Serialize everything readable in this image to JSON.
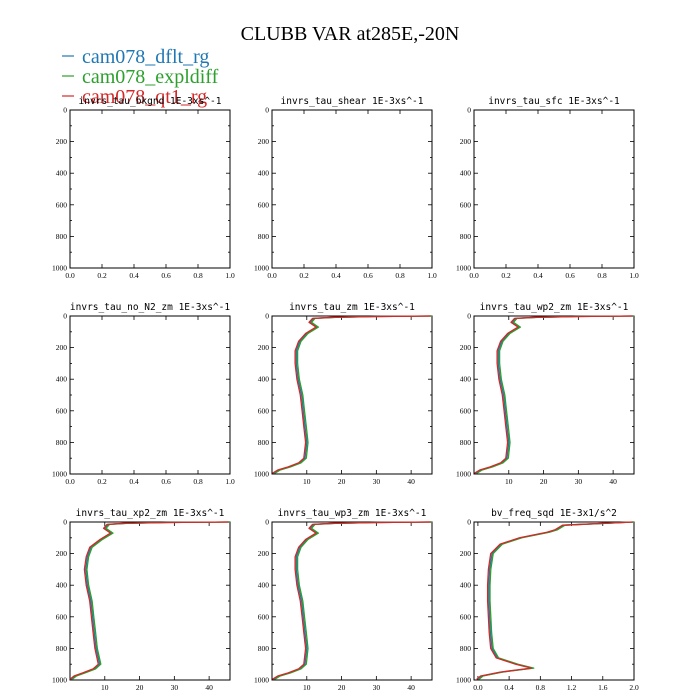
{
  "title": "CLUBB VAR at285E,-20N",
  "legend": [
    {
      "label": "cam078_dflt_rg",
      "color": "#1f77b4"
    },
    {
      "label": "cam078_expldiff",
      "color": "#2ca02c"
    },
    {
      "label": "cam078_qt1_rg",
      "color": "#d62728"
    }
  ],
  "chart_data": [
    {
      "type": "line",
      "title": "invrs_tau_bkgnd",
      "units": "1E-3xs^-1",
      "xlim": [
        0,
        1
      ],
      "xticks": [
        "0.0",
        "0.2",
        "0.4",
        "0.6",
        "0.8",
        "1.0"
      ],
      "ylim": [
        1000,
        0
      ],
      "yticks": [
        "0",
        "200",
        "400",
        "600",
        "800",
        "1000"
      ],
      "series": []
    },
    {
      "type": "line",
      "title": "invrs_tau_shear",
      "units": "1E-3xs^-1",
      "xlim": [
        0,
        1
      ],
      "xticks": [
        "0.0",
        "0.2",
        "0.4",
        "0.6",
        "0.8",
        "1.0"
      ],
      "ylim": [
        1000,
        0
      ],
      "yticks": [
        "0",
        "200",
        "400",
        "600",
        "800",
        "1000"
      ],
      "series": []
    },
    {
      "type": "line",
      "title": "invrs_tau_sfc",
      "units": "1E-3xs^-1",
      "xlim": [
        0,
        1
      ],
      "xticks": [
        "0.0",
        "0.2",
        "0.4",
        "0.6",
        "0.8",
        "1.0"
      ],
      "ylim": [
        1000,
        0
      ],
      "yticks": [
        "0",
        "200",
        "400",
        "600",
        "800",
        "1000"
      ],
      "series": []
    },
    {
      "type": "line",
      "title": "invrs_tau_no_N2_zm",
      "units": "1E-3xs^-1",
      "xlim": [
        0,
        1
      ],
      "xticks": [
        "0.0",
        "0.2",
        "0.4",
        "0.6",
        "0.8",
        "1.0"
      ],
      "ylim": [
        1000,
        0
      ],
      "yticks": [
        "0",
        "200",
        "400",
        "600",
        "800",
        "1000"
      ],
      "series": []
    },
    {
      "type": "line",
      "title": "invrs_tau_zm",
      "units": "1E-3xs^-1",
      "xlim": [
        0,
        46
      ],
      "xticks": [
        "10",
        "20",
        "30",
        "40"
      ],
      "xtickvals": [
        10,
        20,
        30,
        40
      ],
      "ylim": [
        1000,
        0
      ],
      "yticks": [
        "0",
        "200",
        "400",
        "600",
        "800",
        "1000"
      ],
      "series": [
        {
          "x": [
            46,
            30,
            18,
            12,
            11,
            13,
            10,
            8,
            7,
            7,
            7.5,
            8.5,
            9,
            9.5,
            10,
            9.5,
            8,
            5,
            2,
            0.5
          ],
          "y": [
            0,
            3,
            8,
            15,
            40,
            70,
            110,
            160,
            220,
            300,
            400,
            500,
            600,
            700,
            800,
            900,
            930,
            955,
            975,
            995
          ]
        }
      ]
    },
    {
      "type": "line",
      "title": "invrs_tau_wp2_zm",
      "units": "1E-3xs^-1",
      "xlim": [
        0,
        46
      ],
      "xticks": [
        "10",
        "20",
        "30",
        "40"
      ],
      "xtickvals": [
        10,
        20,
        30,
        40
      ],
      "ylim": [
        1000,
        0
      ],
      "yticks": [
        "0",
        "200",
        "400",
        "600",
        "800",
        "1000"
      ],
      "series": [
        {
          "x": [
            46,
            30,
            18,
            12,
            11,
            13,
            10,
            8,
            7,
            7,
            7.5,
            8.5,
            9,
            9.5,
            10,
            9.5,
            8,
            5,
            2,
            0.5
          ],
          "y": [
            0,
            3,
            8,
            15,
            40,
            70,
            110,
            160,
            220,
            300,
            400,
            500,
            600,
            700,
            800,
            900,
            930,
            955,
            975,
            995
          ]
        }
      ]
    },
    {
      "type": "line",
      "title": "invrs_tau_xp2_zm",
      "units": "1E-3xs^-1",
      "xlim": [
        0,
        46
      ],
      "xticks": [
        "10",
        "20",
        "30",
        "40"
      ],
      "xtickvals": [
        10,
        20,
        30,
        40
      ],
      "ylim": [
        1000,
        0
      ],
      "yticks": [
        "0",
        "200",
        "400",
        "600",
        "800",
        "1000"
      ],
      "series": [
        {
          "x": [
            46,
            28,
            16,
            11,
            10,
            12,
            9,
            6,
            5,
            4.5,
            5,
            6,
            6.5,
            7,
            7.5,
            8.5,
            7,
            4,
            1.5,
            0.3
          ],
          "y": [
            0,
            3,
            8,
            15,
            40,
            70,
            110,
            160,
            220,
            300,
            400,
            500,
            600,
            700,
            800,
            900,
            930,
            955,
            975,
            995
          ]
        }
      ]
    },
    {
      "type": "line",
      "title": "invrs_tau_wp3_zm",
      "units": "1E-3xs^-1",
      "xlim": [
        0,
        46
      ],
      "xticks": [
        "10",
        "20",
        "30",
        "40"
      ],
      "xtickvals": [
        10,
        20,
        30,
        40
      ],
      "ylim": [
        1000,
        0
      ],
      "yticks": [
        "0",
        "200",
        "400",
        "600",
        "800",
        "1000"
      ],
      "series": [
        {
          "x": [
            46,
            30,
            18,
            12,
            11,
            13,
            10,
            8,
            7,
            7,
            7.5,
            8.5,
            9,
            9.5,
            10,
            9.5,
            8,
            5,
            2,
            0.5
          ],
          "y": [
            0,
            3,
            8,
            15,
            40,
            70,
            110,
            160,
            220,
            300,
            400,
            500,
            600,
            700,
            800,
            900,
            930,
            955,
            975,
            995
          ]
        }
      ]
    },
    {
      "type": "line",
      "title": "bv_freq_sqd",
      "units": "1E-3x1/s^2",
      "xlim": [
        -0.05,
        2.0
      ],
      "xticks": [
        "0.0",
        "0.4",
        "0.8",
        "1.2",
        "1.6",
        "2.0"
      ],
      "xtickvals": [
        0,
        0.4,
        0.8,
        1.2,
        1.6,
        2.0
      ],
      "ylim": [
        1000,
        0
      ],
      "yticks": [
        "0",
        "200",
        "400",
        "600",
        "800",
        "1000"
      ],
      "series": [
        {
          "x": [
            2.0,
            1.1,
            1.0,
            0.9,
            0.55,
            0.3,
            0.18,
            0.15,
            0.14,
            0.14,
            0.15,
            0.16,
            0.18,
            0.25,
            0.5,
            0.7,
            0.3,
            0.05,
            0.0
          ],
          "y": [
            0,
            20,
            50,
            65,
            100,
            140,
            200,
            300,
            400,
            500,
            600,
            700,
            800,
            860,
            900,
            925,
            950,
            975,
            995
          ]
        }
      ]
    }
  ]
}
